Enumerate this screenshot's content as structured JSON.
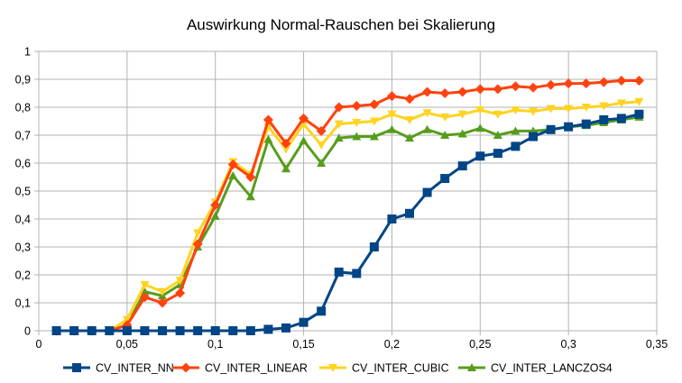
{
  "chart_data": {
    "type": "line",
    "title": "Auswirkung Normal-Rauschen bei Skalierung",
    "xlabel": "",
    "ylabel": "",
    "xlim": [
      0,
      0.35
    ],
    "ylim": [
      0,
      1
    ],
    "x_ticks": [
      0,
      0.05,
      0.1,
      0.15,
      0.2,
      0.25,
      0.3,
      0.35
    ],
    "x_tick_labels": [
      "0",
      "0,05",
      "0,1",
      "0,15",
      "0,2",
      "0,25",
      "0,3",
      "0,35"
    ],
    "y_ticks": [
      0,
      0.1,
      0.2,
      0.3,
      0.4,
      0.5,
      0.6,
      0.7,
      0.8,
      0.9,
      1
    ],
    "y_tick_labels": [
      "0",
      "0,1",
      "0,2",
      "0,3",
      "0,4",
      "0,5",
      "0,6",
      "0,7",
      "0,8",
      "0,9",
      "1"
    ],
    "grid": "horizontal and vertical",
    "legend": "bottom",
    "x": [
      0.01,
      0.02,
      0.03,
      0.04,
      0.05,
      0.06,
      0.07,
      0.08,
      0.09,
      0.1,
      0.11,
      0.12,
      0.13,
      0.14,
      0.15,
      0.16,
      0.17,
      0.18,
      0.19,
      0.2,
      0.21,
      0.22,
      0.23,
      0.24,
      0.25,
      0.26,
      0.27,
      0.28,
      0.29,
      0.3,
      0.31,
      0.32,
      0.33,
      0.34
    ],
    "series": [
      {
        "name": "CV_INTER_NN",
        "color": "#004586",
        "marker": "square",
        "values": [
          0,
          0,
          0,
          0,
          0,
          0,
          0,
          0,
          0,
          0,
          0,
          0,
          0.005,
          0.01,
          0.03,
          0.07,
          0.21,
          0.205,
          0.3,
          0.4,
          0.42,
          0.495,
          0.545,
          0.59,
          0.625,
          0.635,
          0.66,
          0.695,
          0.72,
          0.73,
          0.74,
          0.755,
          0.76,
          0.775
        ]
      },
      {
        "name": "CV_INTER_LINEAR",
        "color": "#ff420e",
        "marker": "diamond",
        "values": [
          0,
          0,
          0,
          0,
          0.02,
          0.12,
          0.1,
          0.135,
          0.31,
          0.45,
          0.595,
          0.55,
          0.755,
          0.67,
          0.76,
          0.715,
          0.8,
          0.805,
          0.81,
          0.84,
          0.83,
          0.855,
          0.85,
          0.855,
          0.865,
          0.865,
          0.875,
          0.87,
          0.88,
          0.885,
          0.885,
          0.89,
          0.895,
          0.895
        ]
      },
      {
        "name": "CV_INTER_CUBIC",
        "color": "#ffd320",
        "marker": "triangle-down",
        "values": [
          0,
          0,
          0,
          0,
          0.04,
          0.165,
          0.14,
          0.18,
          0.35,
          0.46,
          0.605,
          0.56,
          0.73,
          0.65,
          0.74,
          0.665,
          0.74,
          0.745,
          0.75,
          0.775,
          0.755,
          0.78,
          0.765,
          0.775,
          0.79,
          0.775,
          0.79,
          0.785,
          0.795,
          0.795,
          0.8,
          0.805,
          0.815,
          0.82
        ]
      },
      {
        "name": "CV_INTER_LANCZOS4",
        "color": "#579d1c",
        "marker": "triangle-up",
        "values": [
          0,
          0,
          0,
          0,
          0.02,
          0.14,
          0.125,
          0.165,
          0.3,
          0.41,
          0.555,
          0.48,
          0.685,
          0.58,
          0.68,
          0.6,
          0.69,
          0.695,
          0.695,
          0.72,
          0.69,
          0.72,
          0.7,
          0.705,
          0.725,
          0.7,
          0.715,
          0.715,
          0.72,
          0.73,
          0.735,
          0.745,
          0.755,
          0.765
        ]
      }
    ]
  }
}
